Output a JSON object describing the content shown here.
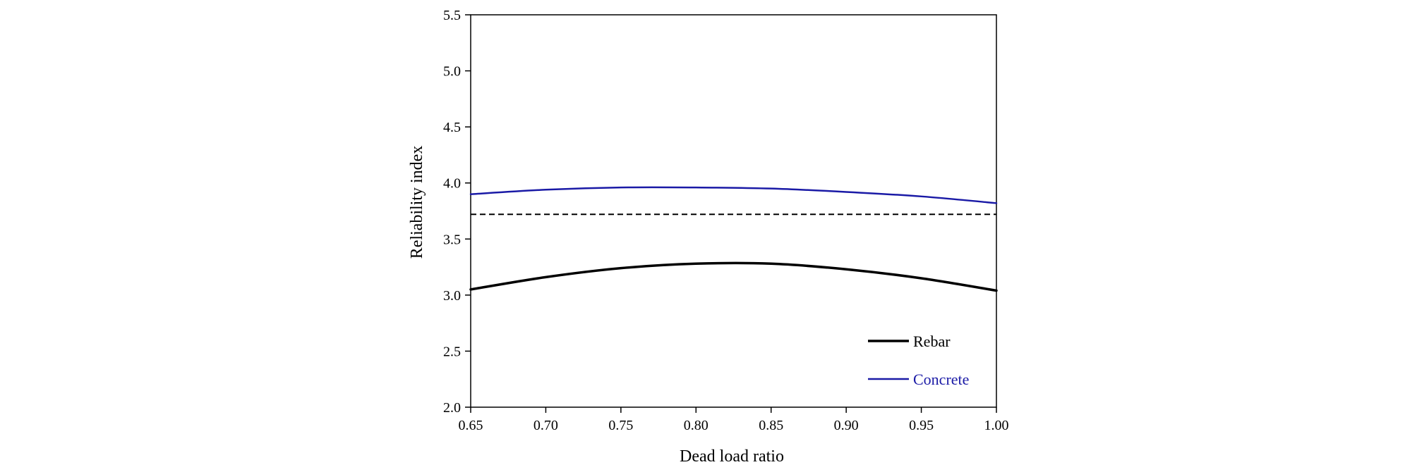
{
  "chart_data": {
    "type": "line",
    "title": "",
    "xlabel": "Dead load ratio",
    "ylabel": "Reliability index",
    "xlim": [
      0.65,
      1.0
    ],
    "ylim": [
      2.0,
      5.5
    ],
    "xticks": [
      "0.65",
      "0.70",
      "0.75",
      "0.80",
      "0.85",
      "0.90",
      "0.95",
      "1.00"
    ],
    "yticks": [
      "2.0",
      "2.5",
      "3.0",
      "3.5",
      "4.0",
      "4.5",
      "5.0",
      "5.5"
    ],
    "grid": false,
    "legend_position": "bottom-right",
    "x": [
      0.65,
      0.7,
      0.75,
      0.8,
      0.85,
      0.9,
      0.95,
      1.0
    ],
    "series": [
      {
        "name": "Rebar",
        "color": "#000000",
        "values": [
          3.05,
          3.16,
          3.24,
          3.28,
          3.28,
          3.23,
          3.15,
          3.04
        ]
      },
      {
        "name": "Concrete",
        "color": "#1a1aa6",
        "values": [
          3.9,
          3.94,
          3.96,
          3.96,
          3.95,
          3.92,
          3.88,
          3.82
        ]
      }
    ],
    "reference_line": {
      "y": 3.72,
      "style": "dashed",
      "color": "#000000"
    }
  }
}
